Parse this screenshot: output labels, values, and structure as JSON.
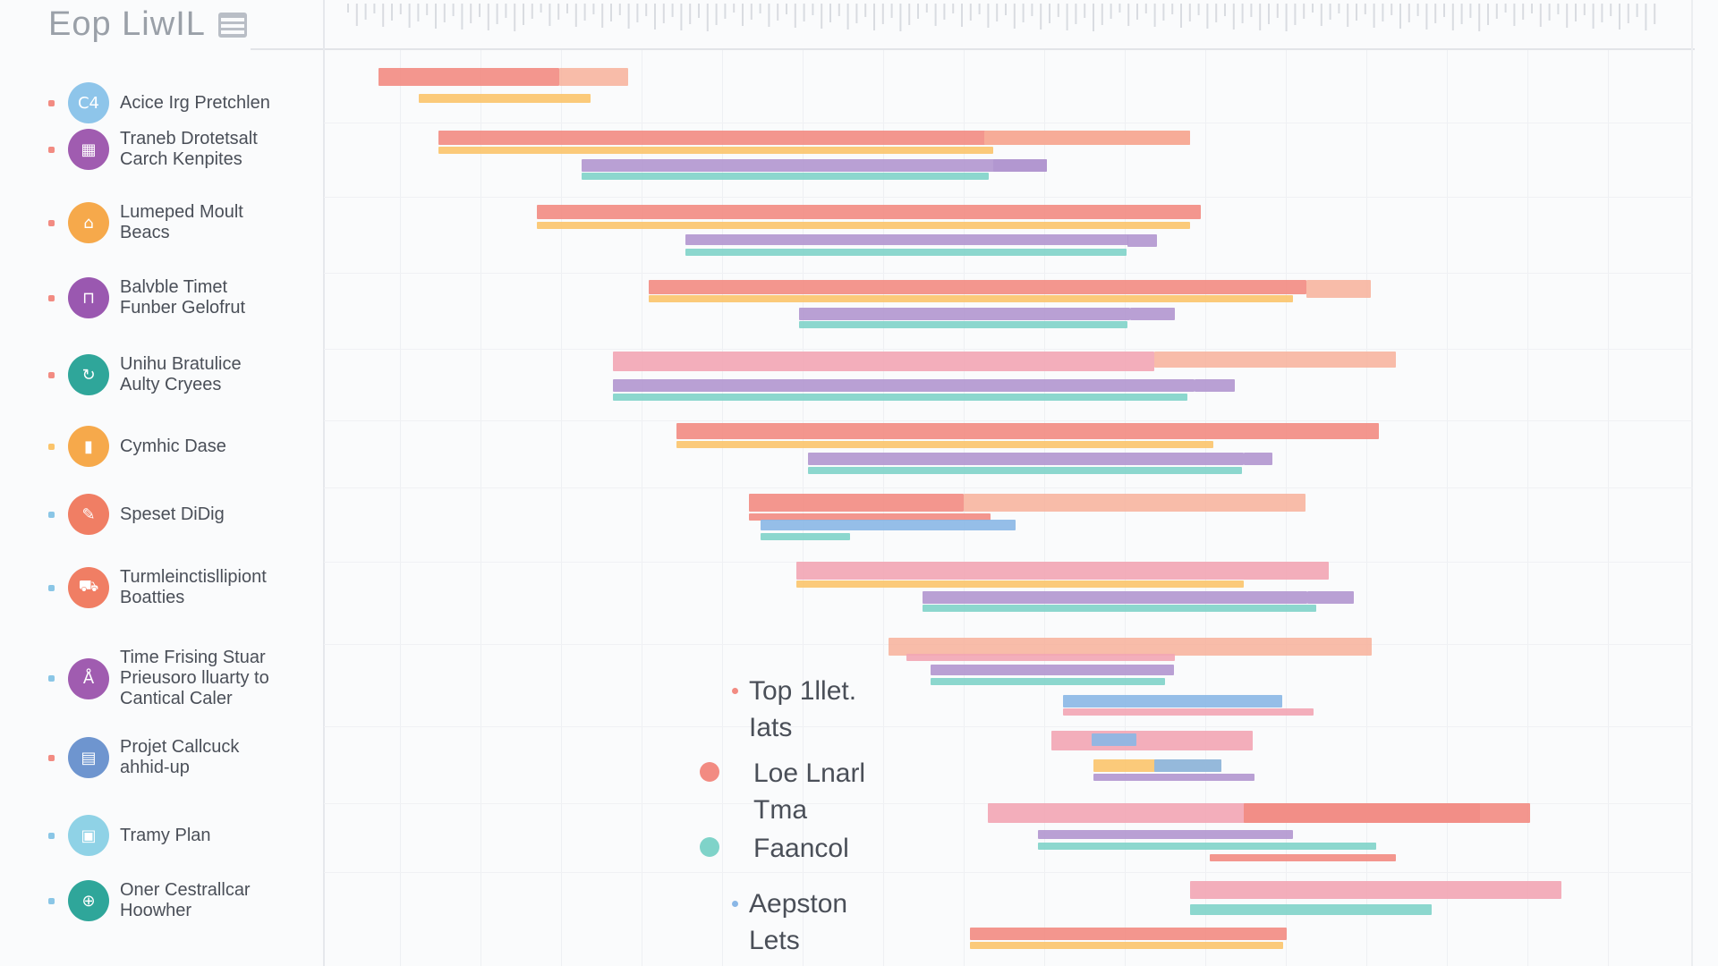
{
  "title": "Eop LiwIL",
  "colors": {
    "coral": "#f28b82",
    "salmon": "#f7b09a",
    "pink": "#f2a5b4",
    "yellow": "#fbc46b",
    "purple": "#b196cf",
    "teal": "#7fd3c9",
    "blue": "#8ab7e6"
  },
  "sidebar": {
    "items": [
      {
        "label": "Acice Irg Pretchlen",
        "icon": "chat-icon",
        "color": "#8ec5ea",
        "glyph": "C4",
        "dot": "#f28b82"
      },
      {
        "label": "Traneb Drotetsalt\nCarch Kenpites",
        "icon": "calendar-icon",
        "color": "#a05cb0",
        "glyph": "▦",
        "dot": "#f28b82"
      },
      {
        "label": "Lumeped Moult\nBeacs",
        "icon": "bag-icon",
        "color": "#f6a94b",
        "glyph": "⌂",
        "dot": "#f28b82"
      },
      {
        "label": "Balvble Timet\nFunber Gelofrut",
        "icon": "lock-icon",
        "color": "#9a58b0",
        "glyph": "⊓",
        "dot": "#f28b82"
      },
      {
        "label": "Unihu Bratulice\nAulty Cryees",
        "icon": "refresh-icon",
        "color": "#2fa69a",
        "glyph": "↻",
        "dot": "#f28b82"
      },
      {
        "label": "Cymhic Dase",
        "icon": "book-icon",
        "color": "#f6a94b",
        "glyph": "▮",
        "dot": "#fbc46b"
      },
      {
        "label": "Speset DiDig",
        "icon": "pen-icon",
        "color": "#f07e64",
        "glyph": "✎",
        "dot": "#8ac6e6"
      },
      {
        "label": "Turmleinctisllipiont\nBoatties",
        "icon": "truck-icon",
        "color": "#f07e64",
        "glyph": "⛟",
        "dot": "#8ac6e6"
      },
      {
        "label": "Time Frising Stuar\nPrieusoro lluarty to\nCantical Caler",
        "icon": "user-icon",
        "color": "#a05cb0",
        "glyph": "Å",
        "dot": "#8ac6e6"
      },
      {
        "label": "Projet Callcuck\nahhid-up",
        "icon": "grid-icon",
        "color": "#6e95cf",
        "glyph": "▤",
        "dot": "#f28b82"
      },
      {
        "label": "Tramy Plan",
        "icon": "document-icon",
        "color": "#8fd2e6",
        "glyph": "▣",
        "dot": "#8ac6e6"
      },
      {
        "label": "Oner Cestrallcar\nHoowher",
        "icon": "globe-icon",
        "color": "#2fa69a",
        "glyph": "⊕",
        "dot": "#8ac6e6"
      }
    ]
  },
  "legend": [
    {
      "label": "Top 1llet.\nIats",
      "color": "#f28b82",
      "size": "small"
    },
    {
      "label": "Loe Lnarl\nTma",
      "color": "#f28b82",
      "size": "large"
    },
    {
      "label": "Faancol",
      "color": "#7fd3c9",
      "size": "large"
    },
    {
      "label": "Aepston\nLets",
      "color": "#8ab7e6",
      "size": "small"
    }
  ]
}
